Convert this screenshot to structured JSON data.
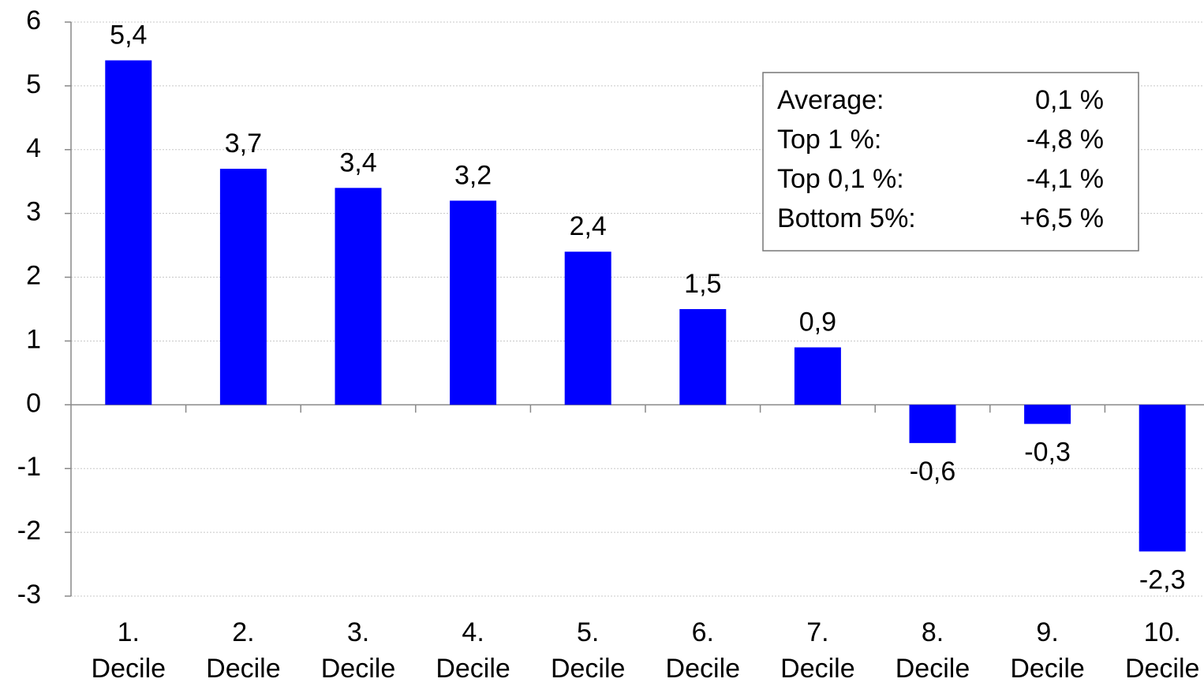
{
  "chart_data": {
    "type": "bar",
    "categories": [
      "1. Decile",
      "2. Decile",
      "3. Decile",
      "4. Decile",
      "5. Decile",
      "6. Decile",
      "7. Decile",
      "8. Decile",
      "9. Decile",
      "10. Decile"
    ],
    "values": [
      5.4,
      3.7,
      3.4,
      3.2,
      2.4,
      1.5,
      0.9,
      -0.6,
      -0.3,
      -2.3
    ],
    "value_labels": [
      "5,4",
      "3,7",
      "3,4",
      "3,2",
      "2,4",
      "1,5",
      "0,9",
      "-0,6",
      "-0,3",
      "-2,3"
    ],
    "color": "#0000ff",
    "ylim": [
      -3,
      6
    ],
    "yticks": [
      -3,
      -2,
      -1,
      0,
      1,
      2,
      3,
      4,
      5,
      6
    ],
    "grid": true,
    "annotation": {
      "rows": [
        [
          "Average:",
          "0,1 %"
        ],
        [
          "Top 1 %:",
          "-4,8 %"
        ],
        [
          "Top 0,1 %:",
          "-4,1 %"
        ],
        [
          "Bottom 5%:",
          "+6,5 %"
        ]
      ]
    }
  }
}
